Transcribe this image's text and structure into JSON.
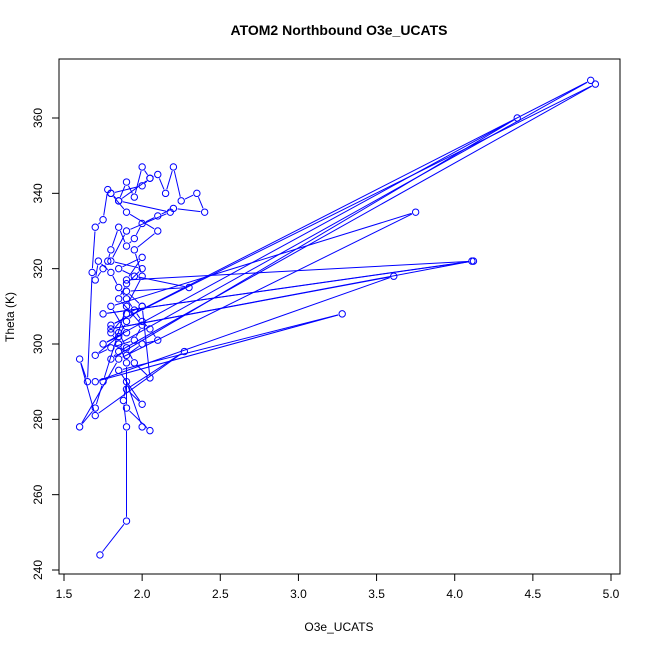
{
  "chart_data": {
    "type": "line",
    "title": "ATOM2 Northbound O3e_UCATS",
    "xlabel": "O3e_UCATS",
    "ylabel": "Theta (K)",
    "xlim": [
      1.5,
      5.0
    ],
    "ylim": [
      240,
      372
    ],
    "xticks": [
      1.5,
      2.0,
      2.5,
      3.0,
      3.5,
      4.0,
      4.5,
      5.0
    ],
    "xtick_labels": [
      "1.5",
      "2.0",
      "2.5",
      "3.0",
      "3.5",
      "4.0",
      "4.5",
      "5.0"
    ],
    "yticks": [
      240,
      260,
      280,
      300,
      320,
      340,
      360
    ],
    "ytick_labels": [
      "240",
      "260",
      "280",
      "300",
      "320",
      "340",
      "360"
    ],
    "series_color": "#0000ff",
    "marker": "open-circle",
    "grid": false,
    "series": [
      {
        "x": [
          1.73,
          1.9,
          1.9,
          1.88,
          1.9,
          2.0,
          2.05,
          1.9,
          1.9,
          1.85,
          4.87,
          1.8,
          4.9,
          1.85,
          1.8,
          4.4,
          1.75,
          1.9,
          1.8,
          3.75,
          1.85,
          1.6,
          1.7,
          1.75,
          1.9,
          2.0,
          1.95,
          2.1,
          1.9,
          1.8,
          2.0,
          2.05,
          1.85,
          2.18,
          1.9,
          1.8,
          2.0,
          1.9,
          1.85,
          2.0,
          1.95,
          1.8,
          1.7,
          1.85,
          1.9,
          2.0,
          1.9,
          2.3,
          1.95,
          1.85,
          2.0,
          1.9,
          4.12,
          1.75,
          4.11,
          1.8,
          3.61,
          1.7,
          3.28,
          1.85,
          2.0,
          1.9,
          2.27,
          1.7,
          1.6,
          1.65,
          1.68,
          1.7,
          1.75,
          1.78,
          1.8,
          1.85,
          1.9,
          1.95,
          2.0,
          2.05,
          2.1,
          2.15,
          2.2,
          2.25,
          2.35,
          2.4,
          2.2,
          2.1,
          2.0,
          1.95,
          1.9,
          1.85,
          1.8,
          1.78,
          1.75,
          1.7,
          1.72,
          1.8,
          1.85,
          1.9,
          1.95,
          2.0,
          2.05,
          2.1,
          2.0,
          1.9,
          1.85,
          1.8,
          1.9,
          2.0,
          2.05,
          1.95,
          1.9,
          1.85
        ],
        "y": [
          244,
          253,
          278,
          285,
          290,
          278,
          277,
          283,
          295,
          300,
          370,
          305,
          369,
          298,
          296,
          360,
          300,
          303,
          310,
          335,
          296,
          278,
          283,
          290,
          310,
          318,
          325,
          330,
          335,
          340,
          342,
          344,
          338,
          335,
          330,
          322,
          320,
          316,
          312,
          305,
          301,
          299,
          297,
          302,
          306,
          310,
          314,
          315,
          318,
          320,
          323,
          317,
          322,
          308,
          322,
          304,
          318,
          290,
          308,
          293,
          284,
          288,
          298,
          281,
          296,
          290,
          319,
          331,
          333,
          341,
          340,
          338,
          343,
          339,
          347,
          344,
          345,
          340,
          347,
          338,
          340,
          335,
          336,
          334,
          332,
          328,
          326,
          331,
          325,
          322,
          320,
          317,
          322,
          319,
          315,
          312,
          309,
          306,
          304,
          301,
          300,
          297,
          300,
          303,
          308,
          310,
          291,
          295,
          299,
          303
        ]
      }
    ]
  }
}
